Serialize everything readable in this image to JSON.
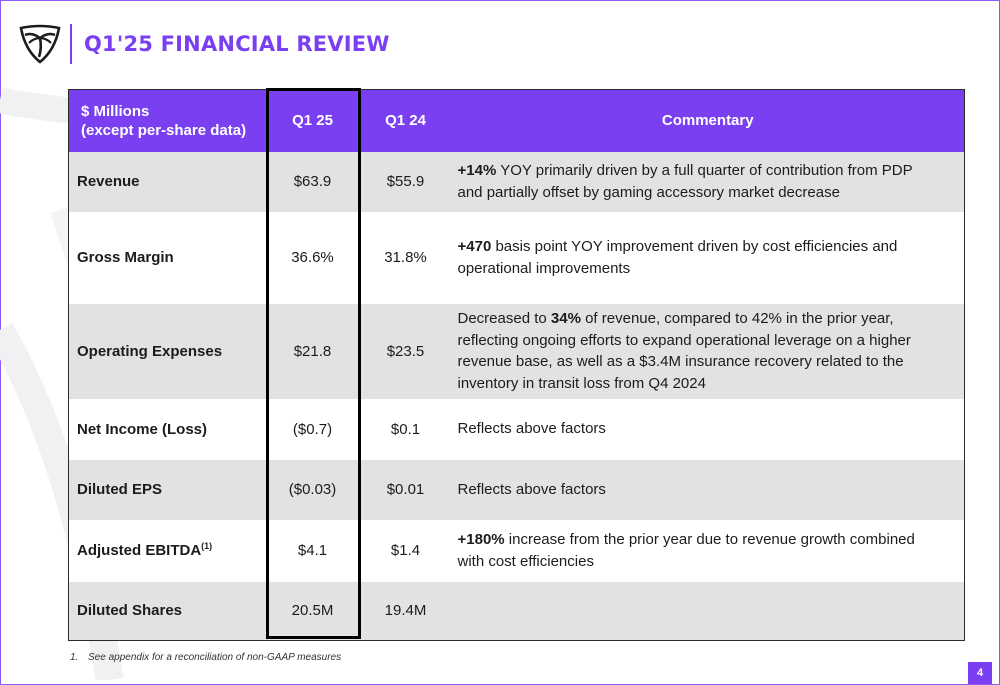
{
  "header": {
    "title": "Q1'25 FINANCIAL REVIEW",
    "logo_icon": "palm-tree-shield-icon"
  },
  "table": {
    "columns": [
      "$ Millions",
      "(except per-share data)",
      "Q1 25",
      "Q1 24",
      "Commentary"
    ],
    "rows": [
      {
        "label": "Revenue",
        "q1_25": "$63.9",
        "q1_24": "$55.9",
        "commentary": {
          "bold": "+14%",
          "text": " YOY primarily driven by a full quarter of contribution from PDP and partially offset by gaming accessory market decrease"
        }
      },
      {
        "label": "Gross Margin",
        "q1_25": "36.6%",
        "q1_24": "31.8%",
        "commentary": {
          "bold": "+470",
          "text": " basis point YOY improvement driven by cost efficiencies and operational improvements"
        }
      },
      {
        "label": "Operating Expenses",
        "q1_25": "$21.8",
        "q1_24": "$23.5",
        "commentary": {
          "pre": "Decreased to ",
          "bold": "34%",
          "text": " of revenue, compared to 42% in the prior year, reflecting ongoing efforts to expand operational leverage on a higher revenue base, as well as a $3.4M insurance recovery related to the inventory in transit loss from Q4 2024"
        }
      },
      {
        "label": "Net Income (Loss)",
        "q1_25": "($0.7)",
        "q1_24": "$0.1",
        "commentary": {
          "text": "Reflects above factors"
        }
      },
      {
        "label": "Diluted EPS",
        "q1_25": "($0.03)",
        "q1_24": "$0.01",
        "commentary": {
          "text": "Reflects above factors"
        }
      },
      {
        "label": "Adjusted EBITDA",
        "label_sup": "(1)",
        "q1_25": "$4.1",
        "q1_24": "$1.4",
        "commentary": {
          "bold": "+180%",
          "text": " increase from the prior year due to revenue growth combined with cost efficiencies"
        }
      },
      {
        "label": "Diluted Shares",
        "q1_25": "20.5M",
        "q1_24": "19.4M",
        "commentary": {
          "text": ""
        }
      }
    ]
  },
  "footnote": {
    "number": "1.",
    "text": "See appendix for a reconciliation of non-GAAP measures"
  },
  "page_number": "4",
  "colors": {
    "accent": "#7b3ff2",
    "row_shade": "#e2e2e2",
    "highlight_border": "#000000"
  }
}
